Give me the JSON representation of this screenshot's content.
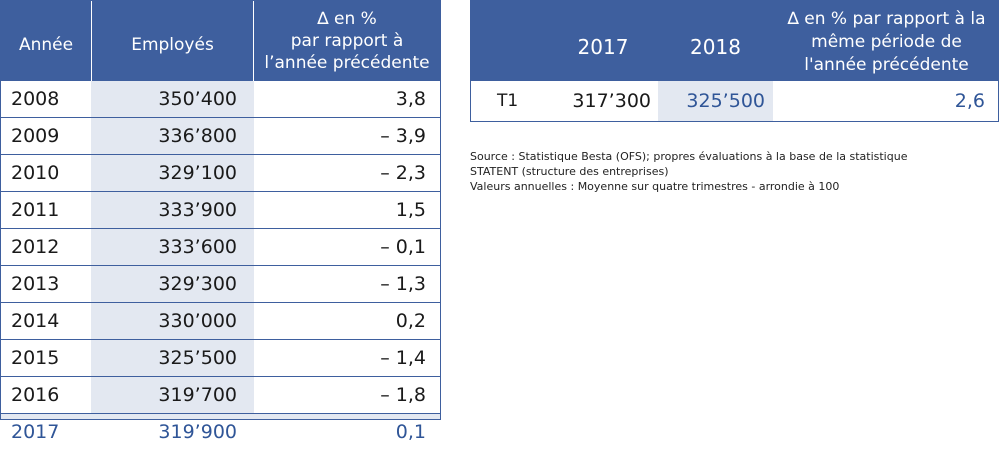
{
  "annual_table": {
    "headers": {
      "year": "Année",
      "employees": "Employés",
      "pct_lines": [
        "∆ en %",
        "par rapport à",
        "l’année précédente"
      ]
    },
    "rows": [
      {
        "year": "2008",
        "employees": "350’400",
        "pct": "3,8"
      },
      {
        "year": "2009",
        "employees": "336’800",
        "pct": "– 3,9"
      },
      {
        "year": "2010",
        "employees": "329’100",
        "pct": "– 2,3"
      },
      {
        "year": "2011",
        "employees": "333’900",
        "pct": "1,5"
      },
      {
        "year": "2012",
        "employees": "333’600",
        "pct": "– 0,1"
      },
      {
        "year": "2013",
        "employees": "329’300",
        "pct": "– 1,3"
      },
      {
        "year": "2014",
        "employees": "330’000",
        "pct": "0,2"
      },
      {
        "year": "2015",
        "employees": "325’500",
        "pct": "– 1,4"
      },
      {
        "year": "2016",
        "employees": "319’700",
        "pct": "– 1,8"
      },
      {
        "year": "2017",
        "employees": "319’900",
        "pct": "0,1"
      }
    ]
  },
  "quarter_table": {
    "headers": {
      "year1": "2017",
      "year2": "2018",
      "pct_lines": [
        "∆ en % par rapport à la",
        "même période de",
        "l'année précédente"
      ]
    },
    "row": {
      "period": "T1",
      "v2017": "317’300",
      "v2018": "325’500",
      "pct": "2,6"
    }
  },
  "notes": [
    "Source : Statistique Besta (OFS); propres évaluations à la base de la statistique",
    "STATENT (structure des entreprises)",
    "Valeurs annuelles : Moyenne sur quatre trimestres - arrondie à 100"
  ],
  "colors": {
    "header_bg": "#3e5f9e",
    "highlight_bg": "#e3e8f1",
    "highlight_text": "#2f5597"
  }
}
